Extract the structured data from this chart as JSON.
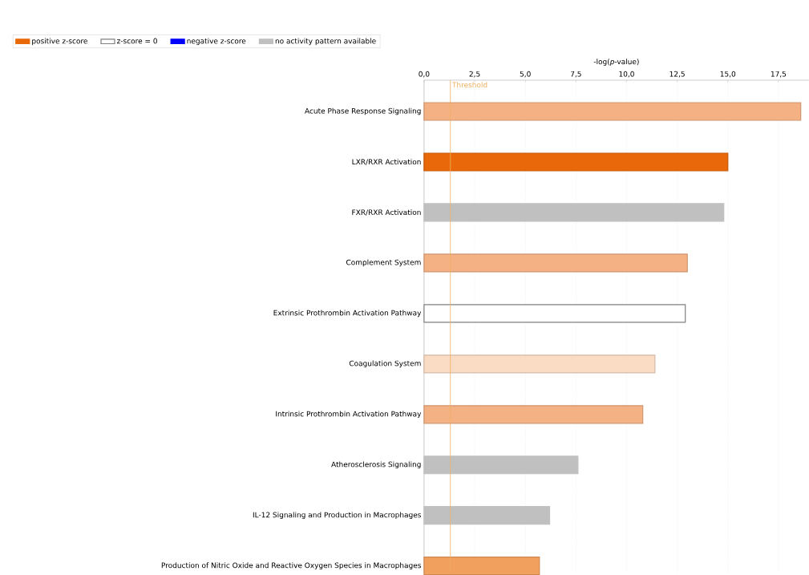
{
  "chart_data": {
    "type": "bar",
    "orientation": "horizontal",
    "xlabel": "-log(*p*-value)",
    "categories": [
      "Acute Phase Response Signaling",
      "LXR/RXR Activation",
      "FXR/RXR Activation",
      "Complement System",
      "Extrinsic Prothrombin Activation Pathway",
      "Coagulation System",
      "Intrinsic Prothrombin Activation Pathway",
      "Atherosclerosis Signaling",
      "IL-12 Signaling and Production in Macrophages",
      "Production of Nitric Oxide and Reactive Oxygen Species in Macrophages"
    ],
    "series": [
      {
        "name": "positive z-score",
        "color": "#e8680a",
        "values": [
          18.6,
          15.0,
          null,
          13.0,
          null,
          11.4,
          10.8,
          null,
          null,
          5.7
        ],
        "colors": [
          "#f4b183",
          "#e8680a",
          null,
          "#f4b183",
          null,
          "#fadbc4",
          "#f4b183",
          null,
          null,
          "#f2a05e"
        ]
      },
      {
        "name": "z-score = 0",
        "color": "#ffffff",
        "values": [
          null,
          null,
          null,
          null,
          12.9,
          null,
          null,
          null,
          null,
          null
        ]
      },
      {
        "name": "negative z-score",
        "color": "#0000ff",
        "values": [
          null,
          null,
          null,
          null,
          null,
          null,
          null,
          null,
          null,
          null
        ]
      },
      {
        "name": "no activity pattern available",
        "color": "#c0c0c0",
        "values": [
          null,
          null,
          14.8,
          null,
          null,
          null,
          null,
          7.6,
          6.2,
          null
        ]
      }
    ],
    "xlim": [
      0,
      19
    ],
    "xticks": [
      {
        "value": 0,
        "label": "0,0"
      },
      {
        "value": 2.5,
        "label": "2,5"
      },
      {
        "value": 5,
        "label": "5,0"
      },
      {
        "value": 7.5,
        "label": "7,5"
      },
      {
        "value": 10,
        "label": "10,0"
      },
      {
        "value": 12.5,
        "label": "12,5"
      },
      {
        "value": 15,
        "label": "15,0"
      },
      {
        "value": 17.5,
        "label": "17,5"
      }
    ],
    "ref_lines": [
      {
        "axis": "x",
        "value": 1.3,
        "label": "Threshold",
        "color": "#f0b060"
      }
    ],
    "grid": "x",
    "legend": "top left"
  }
}
